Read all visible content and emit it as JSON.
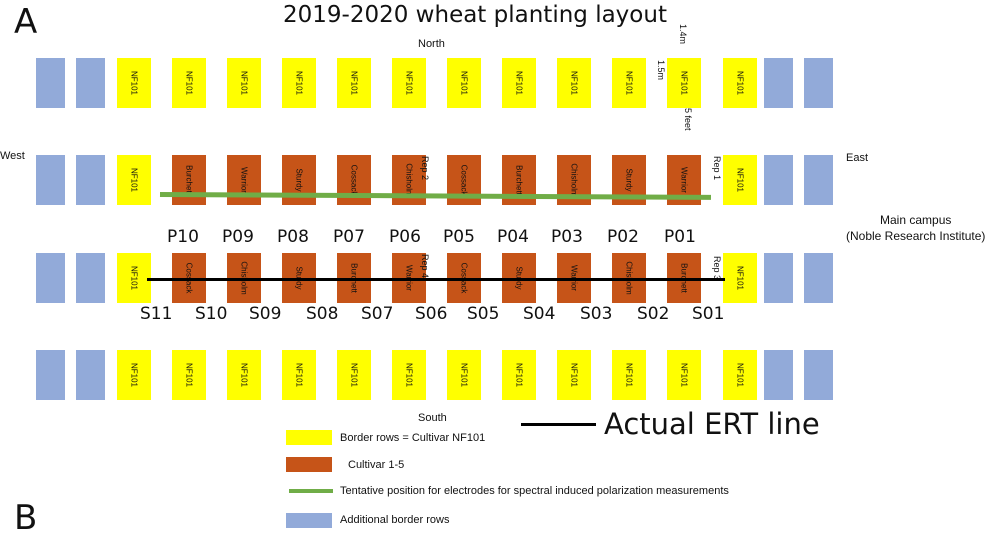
{
  "panel_a": "A",
  "panel_b": "B",
  "title": "2019-2020 wheat planting layout",
  "compass": {
    "north": "North",
    "south": "South",
    "west": "West",
    "east": "East"
  },
  "dims": {
    "d1": "1.4m",
    "d2": "1.5m",
    "d3": "5 feet"
  },
  "campus": {
    "line1": "Main campus",
    "line2": "(Noble Research Institute)"
  },
  "reps": {
    "rep1": "Rep 1",
    "rep2": "Rep 2",
    "rep3": "Rep 3",
    "rep4": "Rep 4"
  },
  "rows": {
    "row1": [
      "NF101",
      "NF101",
      "NF101",
      "NF101",
      "NF101",
      "NF101",
      "NF101",
      "NF101",
      "NF101",
      "NF101",
      "NF101",
      "NF101"
    ],
    "row2": [
      "NF101",
      "Burchett",
      "Warrior",
      "Sturdy",
      "Cossack",
      "Chisholm",
      "Cossack",
      "Burchett",
      "Chisholm",
      "Sturdy",
      "Warrior",
      "NF101"
    ],
    "row3": [
      "NF101",
      "Cossack",
      "Chisholm",
      "Sturdy",
      "Burchett",
      "Warrior",
      "Cossack",
      "Sturdy",
      "Warrior",
      "Chisholm",
      "Burchett",
      "NF101"
    ],
    "row4": [
      "NF101",
      "NF101",
      "NF101",
      "NF101",
      "NF101",
      "NF101",
      "NF101",
      "NF101",
      "NF101",
      "NF101",
      "NF101",
      "NF101"
    ]
  },
  "p_labels": [
    "P10",
    "P09",
    "P08",
    "P07",
    "P06",
    "P05",
    "P04",
    "P03",
    "P02",
    "P01"
  ],
  "s_labels": [
    "S11",
    "S10",
    "S09",
    "S08",
    "S07",
    "S06",
    "S05",
    "S04",
    "S03",
    "S02",
    "S01"
  ],
  "ert_label": "Actual ERT line",
  "legend": {
    "border": "Border rows = Cultivar NF101",
    "cultivar": "Cultivar 1-5",
    "sip": "Tentative position for electrodes for spectral induced polarization measurements",
    "additional": "Additional border rows"
  },
  "colors": {
    "border": "#ffff00",
    "cultivar": "#c65418",
    "additional": "#92aad9",
    "sip_line": "#70ad47",
    "ert_line": "#000000"
  }
}
